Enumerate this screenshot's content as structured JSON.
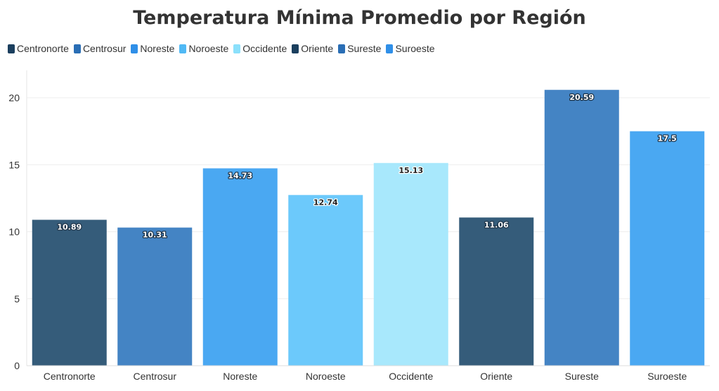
{
  "chart_data": {
    "type": "bar",
    "title": "Temperatura Mínima Promedio por Región",
    "xlabel": "",
    "ylabel": "",
    "categories": [
      "Centronorte",
      "Centrosur",
      "Noreste",
      "Noroeste",
      "Occidente",
      "Oriente",
      "Sureste",
      "Suroeste"
    ],
    "values": [
      10.89,
      10.31,
      14.73,
      12.74,
      15.13,
      11.06,
      20.59,
      17.5
    ],
    "value_labels": [
      "10.89",
      "10.31",
      "14.73",
      "12.74",
      "15.13",
      "11.06",
      "20.59",
      "17.5"
    ],
    "colors": [
      "#355c7a",
      "#4484c4",
      "#4aa8f2",
      "#6cc9fb",
      "#a8e8fc",
      "#355c7a",
      "#4484c4",
      "#4aa8f2"
    ],
    "legend_colors": [
      "#1b3f5e",
      "#2a6eb5",
      "#2f8fe8",
      "#50b9f5",
      "#8be0fb",
      "#1b3f5e",
      "#2a6eb5",
      "#2f8fe8"
    ],
    "label_text_colors": [
      "#ffffff",
      "#ffffff",
      "#ffffff",
      "#222222",
      "#222222",
      "#ffffff",
      "#ffffff",
      "#ffffff"
    ],
    "ylim": [
      0,
      22
    ],
    "yticks": [
      0,
      5,
      10,
      15,
      20
    ],
    "grid": true,
    "legend_position": "top-left"
  }
}
